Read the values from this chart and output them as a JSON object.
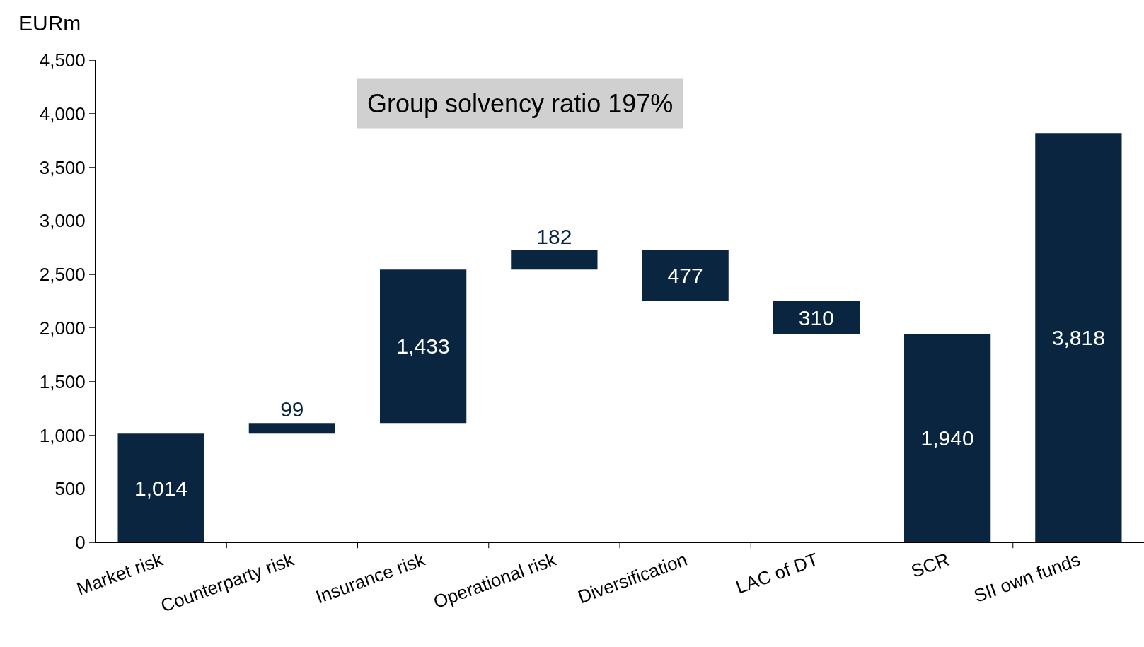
{
  "chart_data": {
    "type": "bar",
    "ylabel": "EURm",
    "categories": [
      "Market risk",
      "Counterparty risk",
      "Insurance risk",
      "Operational risk",
      "Diversification",
      "LAC of DT",
      "SCR",
      "SII own funds"
    ],
    "values": [
      1014,
      99,
      1433,
      182,
      477,
      310,
      1940,
      3818
    ],
    "base": [
      0,
      1014,
      1113,
      2546,
      2251,
      1941,
      0,
      0
    ],
    "value_labels": [
      "1,014",
      "99",
      "1,433",
      "182",
      "477",
      "310",
      "1,940",
      "3,818"
    ],
    "color": "#0a2540",
    "ylim": [
      0,
      4500
    ],
    "yticks": [
      0,
      500,
      {
        "value": 1000,
        "label": "1,000"
      },
      {
        "value": 1500,
        "label": "1,500"
      },
      {
        "value": 2000,
        "label": "2,000"
      },
      {
        "value": 2500,
        "label": "2,500"
      },
      {
        "value": 3000,
        "label": "3,000"
      },
      {
        "value": 3500,
        "label": "3,500"
      },
      {
        "value": 4000,
        "label": "4,000"
      },
      {
        "value": 4500,
        "label": "4,500"
      }
    ],
    "grid": false,
    "legend": false,
    "annotations": [
      "Group solvency ratio 197%"
    ]
  }
}
